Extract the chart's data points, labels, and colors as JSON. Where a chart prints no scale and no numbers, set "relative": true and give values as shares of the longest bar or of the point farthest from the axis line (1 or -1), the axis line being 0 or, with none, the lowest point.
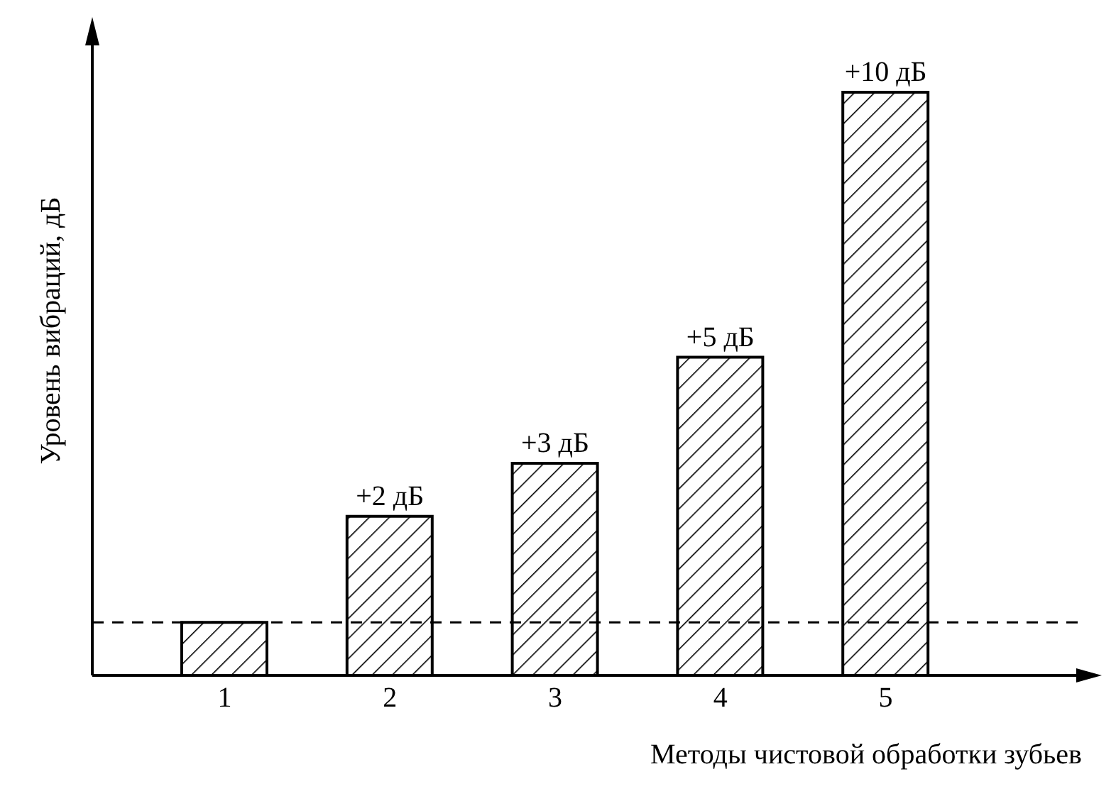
{
  "chart_data": {
    "type": "bar",
    "xlabel": "Методы чистовой обработки зубьев",
    "ylabel": "Уровень вибраций, дБ",
    "categories": [
      "1",
      "2",
      "3",
      "4",
      "5"
    ],
    "values": [
      0.0909,
      0.2727,
      0.3636,
      0.5455,
      1
    ],
    "color": "#000000",
    "relative": true,
    "annotations": [
      {
        "text": "+2 дБ",
        "x": "2",
        "y": 0.2727
      },
      {
        "text": "+3 дБ",
        "x": "3",
        "y": 0.3636
      },
      {
        "text": "+5 дБ",
        "x": "4",
        "y": 0.5455
      },
      {
        "text": "+10 дБ",
        "x": "5",
        "y": 1
      }
    ],
    "ref_lines": [
      {
        "axis": "y",
        "value": 0.0909,
        "label": null,
        "color": "#000000",
        "line_style": "dashed"
      }
    ]
  }
}
